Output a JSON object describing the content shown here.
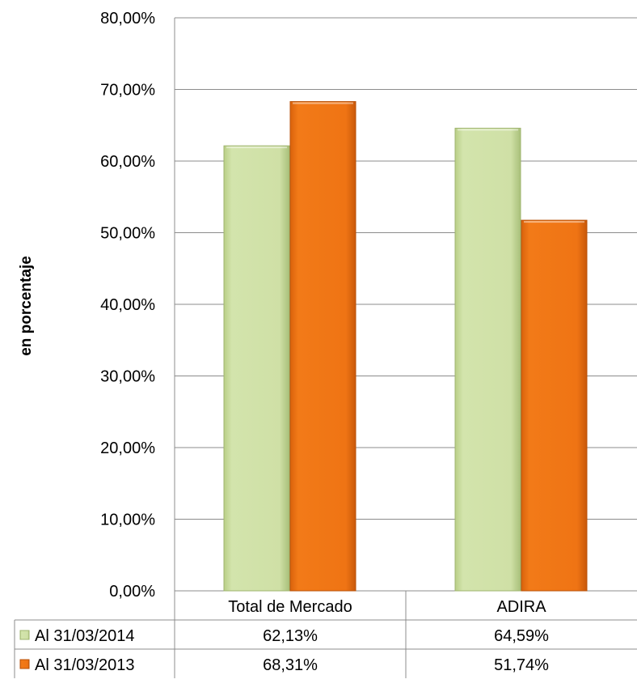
{
  "chart_data": {
    "type": "bar",
    "title": "",
    "xlabel": "",
    "ylabel": "en porcentaje",
    "ylim": [
      0,
      80
    ],
    "y_ticks": [
      "0,00%",
      "10,00%",
      "20,00%",
      "30,00%",
      "40,00%",
      "50,00%",
      "60,00%",
      "70,00%",
      "80,00%"
    ],
    "grid": true,
    "legend": "data-table",
    "categories": [
      "Total de Mercado",
      "ADIRA"
    ],
    "series": [
      {
        "name": "Al 31/03/2014",
        "values": [
          62.13,
          64.59
        ],
        "labels": [
          "62,13%",
          "64,59%"
        ],
        "color": "#cfe0a6"
      },
      {
        "name": "Al 31/03/2013",
        "values": [
          68.31,
          51.74
        ],
        "labels": [
          "68,31%",
          "51,74%"
        ],
        "color": "#f07716"
      }
    ]
  }
}
